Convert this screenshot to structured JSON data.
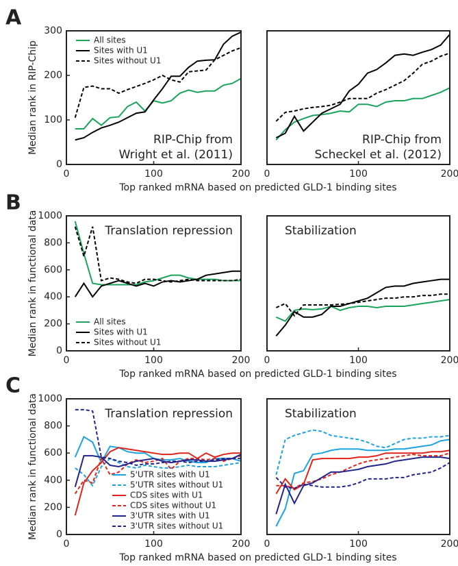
{
  "chart_data": [
    {
      "type": "line",
      "panel": "A",
      "ylabel": "Median rank in RIP-Chip",
      "xlabel": "Top ranked mRNA based on predicted GLD-1 binding sites",
      "annotation": [
        "RIP-Chip from",
        "Wright et al. (2011)"
      ],
      "annotation_corner": "lower right",
      "legend": "upper left",
      "x": [
        10,
        20,
        30,
        40,
        50,
        60,
        70,
        80,
        90,
        100,
        110,
        120,
        130,
        140,
        150,
        160,
        170,
        180,
        190,
        200
      ],
      "xlim": [
        0,
        200
      ],
      "xticks": [
        0,
        100,
        200
      ],
      "ylim": [
        0,
        300
      ],
      "yticks": [
        0,
        100,
        200,
        300
      ],
      "series": [
        {
          "name": "All sites",
          "color": "#1aa35a",
          "dash": false,
          "values": [
            80,
            80,
            103,
            88,
            105,
            107,
            130,
            140,
            120,
            143,
            138,
            143,
            160,
            167,
            162,
            165,
            165,
            178,
            182,
            193
          ]
        },
        {
          "name": "Sites with U1",
          "color": "#000000",
          "dash": false,
          "values": [
            55,
            60,
            72,
            82,
            88,
            95,
            105,
            115,
            118,
            145,
            170,
            198,
            198,
            218,
            232,
            234,
            235,
            270,
            288,
            297
          ]
        },
        {
          "name": "Sites without U1",
          "color": "#000000",
          "dash": true,
          "values": [
            105,
            173,
            176,
            170,
            170,
            160,
            168,
            175,
            182,
            190,
            200,
            190,
            185,
            208,
            210,
            212,
            235,
            245,
            255,
            262
          ]
        }
      ]
    },
    {
      "type": "line",
      "annotation": [
        "RIP-Chip from",
        "Scheckel et al. (2012)"
      ],
      "annotation_corner": "lower right",
      "x": [
        10,
        20,
        30,
        40,
        50,
        60,
        70,
        80,
        90,
        100,
        110,
        120,
        130,
        140,
        150,
        160,
        170,
        180,
        190,
        200
      ],
      "xlim": [
        0,
        200
      ],
      "xticks": [
        0,
        100,
        200
      ],
      "ylim": [
        0,
        300
      ],
      "series": [
        {
          "color": "#1aa35a",
          "dash": false,
          "values": [
            55,
            78,
            95,
            103,
            110,
            112,
            115,
            120,
            118,
            135,
            135,
            130,
            140,
            143,
            143,
            148,
            148,
            155,
            162,
            172
          ]
        },
        {
          "color": "#000000",
          "dash": false,
          "values": [
            60,
            70,
            108,
            75,
            95,
            115,
            125,
            135,
            165,
            180,
            205,
            213,
            228,
            245,
            248,
            245,
            252,
            258,
            268,
            292
          ]
        },
        {
          "color": "#000000",
          "dash": true,
          "values": [
            97,
            117,
            120,
            125,
            128,
            130,
            133,
            140,
            148,
            148,
            148,
            160,
            168,
            178,
            188,
            205,
            225,
            232,
            243,
            250
          ]
        }
      ]
    },
    {
      "type": "line",
      "panel": "B",
      "ylabel": "Median rank in functional data",
      "xlabel": "Top ranked mRNA based on predicted GLD-1 binding sites",
      "annotation": [
        "Translation repression"
      ],
      "annotation_corner": "upper right",
      "legend": "lower left",
      "x": [
        10,
        20,
        30,
        40,
        50,
        60,
        70,
        80,
        90,
        100,
        110,
        120,
        130,
        140,
        150,
        160,
        170,
        180,
        190,
        200
      ],
      "xlim": [
        0,
        200
      ],
      "xticks": [
        0,
        100,
        200
      ],
      "ylim": [
        0,
        1000
      ],
      "yticks": [
        0,
        200,
        400,
        600,
        800,
        1000
      ],
      "series": [
        {
          "name": "All sites",
          "color": "#1aa35a",
          "dash": false,
          "values": [
            960,
            720,
            500,
            490,
            490,
            490,
            490,
            490,
            510,
            520,
            540,
            560,
            560,
            540,
            530,
            530,
            530,
            520,
            520,
            520
          ]
        },
        {
          "name": "Sites with U1",
          "color": "#000000",
          "dash": false,
          "values": [
            400,
            500,
            400,
            480,
            500,
            520,
            500,
            480,
            500,
            480,
            510,
            520,
            510,
            520,
            530,
            560,
            570,
            580,
            590,
            590
          ]
        },
        {
          "name": "Sites without U1",
          "color": "#000000",
          "dash": true,
          "values": [
            920,
            700,
            920,
            520,
            540,
            530,
            510,
            500,
            530,
            530,
            520,
            510,
            520,
            530,
            520,
            520,
            520,
            520,
            520,
            530
          ]
        }
      ]
    },
    {
      "type": "line",
      "annotation": [
        "Stabilization"
      ],
      "annotation_corner": "upper left",
      "x": [
        10,
        20,
        30,
        40,
        50,
        60,
        70,
        80,
        90,
        100,
        110,
        120,
        130,
        140,
        150,
        160,
        170,
        180,
        190,
        200
      ],
      "xlim": [
        0,
        200
      ],
      "xticks": [
        0,
        100,
        200
      ],
      "ylim": [
        0,
        1000
      ],
      "series": [
        {
          "color": "#1aa35a",
          "dash": false,
          "values": [
            250,
            220,
            300,
            310,
            305,
            310,
            330,
            300,
            320,
            330,
            330,
            320,
            330,
            330,
            330,
            340,
            350,
            360,
            370,
            380
          ]
        },
        {
          "color": "#000000",
          "dash": false,
          "values": [
            110,
            190,
            290,
            250,
            250,
            270,
            330,
            330,
            350,
            370,
            390,
            430,
            470,
            480,
            480,
            500,
            510,
            520,
            530,
            530
          ]
        },
        {
          "color": "#000000",
          "dash": true,
          "values": [
            320,
            350,
            260,
            340,
            340,
            340,
            340,
            345,
            350,
            360,
            370,
            380,
            390,
            390,
            400,
            400,
            410,
            410,
            420,
            420
          ]
        }
      ]
    },
    {
      "type": "line",
      "panel": "C",
      "ylabel": "Median rank in functional data",
      "xlabel": "Top ranked mRNA based on predicted GLD-1 binding sites",
      "annotation": [
        "Translation repression"
      ],
      "annotation_corner": "upper right",
      "legend": "lower right",
      "x": [
        10,
        20,
        30,
        40,
        50,
        60,
        70,
        80,
        90,
        100,
        110,
        120,
        130,
        140,
        150,
        160,
        170,
        180,
        190,
        200
      ],
      "xlim": [
        0,
        200
      ],
      "xticks": [
        0,
        100,
        200
      ],
      "ylim": [
        0,
        1000
      ],
      "yticks": [
        0,
        200,
        400,
        600,
        800,
        1000
      ],
      "series": [
        {
          "name": "5'UTR sites with U1",
          "color": "#1aa3e0",
          "dash": false,
          "values": [
            570,
            720,
            680,
            530,
            650,
            640,
            610,
            600,
            600,
            560,
            550,
            550,
            560,
            540,
            530,
            530,
            560,
            560,
            560,
            540
          ]
        },
        {
          "name": "5'UTR sites without U1",
          "color": "#1aa3e0",
          "dash": true,
          "values": [
            490,
            440,
            360,
            500,
            560,
            530,
            500,
            490,
            510,
            500,
            490,
            490,
            500,
            510,
            500,
            500,
            500,
            510,
            520,
            530
          ]
        },
        {
          "name": "CDS sites with U1",
          "color": "#e0231a",
          "dash": false,
          "values": [
            140,
            380,
            470,
            530,
            610,
            640,
            630,
            620,
            610,
            600,
            590,
            590,
            600,
            600,
            560,
            600,
            570,
            590,
            600,
            600
          ]
        },
        {
          "name": "CDS sites without U1",
          "color": "#e0231a",
          "dash": true,
          "values": [
            300,
            400,
            380,
            560,
            440,
            460,
            520,
            550,
            530,
            540,
            560,
            480,
            540,
            560,
            560,
            550,
            560,
            540,
            560,
            580
          ]
        },
        {
          "name": "3'UTR sites with U1",
          "color": "#23238c",
          "dash": false,
          "values": [
            350,
            580,
            580,
            570,
            510,
            500,
            520,
            540,
            550,
            560,
            540,
            530,
            540,
            550,
            550,
            540,
            540,
            550,
            560,
            590
          ]
        },
        {
          "name": "3'UTR sites without U1",
          "color": "#23238c",
          "dash": true,
          "values": [
            920,
            920,
            910,
            570,
            560,
            540,
            530,
            510,
            520,
            520,
            530,
            540,
            540,
            530,
            540,
            540,
            550,
            560,
            560,
            560
          ]
        }
      ]
    },
    {
      "type": "line",
      "annotation": [
        "Stabilization"
      ],
      "annotation_corner": "upper left",
      "x": [
        10,
        20,
        30,
        40,
        50,
        60,
        70,
        80,
        90,
        100,
        110,
        120,
        130,
        140,
        150,
        160,
        170,
        180,
        190,
        200
      ],
      "xlim": [
        0,
        200
      ],
      "xticks": [
        0,
        100,
        200
      ],
      "ylim": [
        0,
        1000
      ],
      "series": [
        {
          "color": "#1aa3e0",
          "dash": false,
          "values": [
            60,
            190,
            450,
            470,
            590,
            600,
            620,
            630,
            630,
            630,
            620,
            620,
            620,
            630,
            630,
            640,
            650,
            660,
            690,
            700
          ]
        },
        {
          "color": "#1aa3e0",
          "dash": true,
          "values": [
            440,
            700,
            730,
            750,
            770,
            760,
            730,
            720,
            710,
            700,
            680,
            650,
            640,
            670,
            700,
            710,
            710,
            720,
            720,
            730
          ]
        },
        {
          "color": "#e0231a",
          "dash": false,
          "values": [
            300,
            410,
            330,
            370,
            550,
            560,
            560,
            560,
            560,
            570,
            570,
            580,
            600,
            600,
            600,
            600,
            600,
            610,
            610,
            620
          ]
        },
        {
          "color": "#e0231a",
          "dash": true,
          "values": [
            360,
            360,
            340,
            380,
            390,
            410,
            440,
            460,
            490,
            520,
            540,
            550,
            560,
            570,
            580,
            590,
            580,
            580,
            580,
            600
          ]
        },
        {
          "color": "#23238c",
          "dash": false,
          "values": [
            150,
            370,
            230,
            360,
            380,
            420,
            460,
            460,
            470,
            480,
            500,
            510,
            520,
            540,
            550,
            560,
            570,
            570,
            570,
            560
          ]
        },
        {
          "color": "#23238c",
          "dash": true,
          "values": [
            420,
            350,
            340,
            370,
            360,
            350,
            350,
            350,
            360,
            380,
            410,
            410,
            410,
            420,
            420,
            440,
            450,
            460,
            490,
            530
          ]
        }
      ]
    }
  ]
}
